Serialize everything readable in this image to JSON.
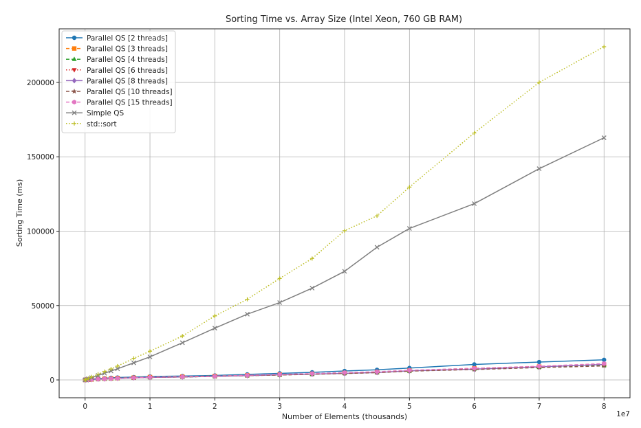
{
  "chart_data": {
    "type": "line",
    "title": "Sorting Time vs. Array Size (Intel Xeon, 760 GB RAM)",
    "xlabel": "Number of Elements (thousands)",
    "ylabel": "Sorting Time (ms)",
    "x_offset_text": "1e7",
    "xlim": [
      -0.4,
      8.4
    ],
    "ylim": [
      -12000,
      236000
    ],
    "x_ticks": [
      0,
      1,
      2,
      3,
      4,
      5,
      6,
      7,
      8
    ],
    "x_tick_labels": [
      "0",
      "1",
      "2",
      "3",
      "4",
      "5",
      "6",
      "7",
      "8"
    ],
    "y_ticks": [
      0,
      50000,
      100000,
      150000,
      200000
    ],
    "y_tick_labels": [
      "0",
      "50000",
      "100000",
      "150000",
      "200000"
    ],
    "grid": true,
    "legend_position": "top-left",
    "x": [
      0,
      0.01,
      0.05,
      0.1,
      0.2,
      0.3,
      0.4,
      0.5,
      0.75,
      1,
      1.5,
      2,
      2.5,
      3,
      3.5,
      4,
      4.5,
      5,
      6,
      7,
      8
    ],
    "series": [
      {
        "name": "Parallel QS [2 threads]",
        "color": "#1f77b4",
        "marker": "circle",
        "dash": "solid",
        "values": [
          0,
          80,
          200,
          500,
          900,
          1100,
          1400,
          1600,
          1900,
          2300,
          2600,
          3000,
          3700,
          4400,
          5100,
          6000,
          6800,
          8000,
          10400,
          12000,
          13500
        ]
      },
      {
        "name": "Parallel QS [3 threads]",
        "color": "#ff7f0e",
        "marker": "square",
        "dash": "dashed",
        "values": [
          0,
          60,
          150,
          300,
          600,
          800,
          1000,
          1200,
          1500,
          1900,
          2200,
          2600,
          3100,
          3600,
          4100,
          4700,
          5300,
          6300,
          7800,
          9000,
          10300
        ]
      },
      {
        "name": "Parallel QS [4 threads]",
        "color": "#2ca02c",
        "marker": "triangle-up",
        "dash": "dashed",
        "values": [
          0,
          60,
          150,
          300,
          550,
          750,
          950,
          1100,
          1400,
          1700,
          2000,
          2400,
          2900,
          3400,
          3900,
          4500,
          5100,
          6000,
          7400,
          8600,
          9800
        ]
      },
      {
        "name": "Parallel QS [6 threads]",
        "color": "#d62728",
        "marker": "triangle-down",
        "dash": "dotted",
        "values": [
          0,
          60,
          150,
          300,
          550,
          700,
          900,
          1100,
          1400,
          1700,
          2000,
          2400,
          2900,
          3400,
          3900,
          4500,
          5100,
          6000,
          7600,
          9000,
          10500
        ]
      },
      {
        "name": "Parallel QS [8 threads]",
        "color": "#9467bd",
        "marker": "diamond",
        "dash": "solid",
        "values": [
          0,
          60,
          150,
          300,
          550,
          700,
          900,
          1100,
          1400,
          1700,
          2000,
          2400,
          2900,
          3400,
          3900,
          4400,
          5000,
          6100,
          7200,
          8800,
          10400
        ]
      },
      {
        "name": "Parallel QS [10 threads]",
        "color": "#8c564b",
        "marker": "star",
        "dash": "dashed",
        "values": [
          0,
          60,
          150,
          300,
          550,
          700,
          900,
          1100,
          1400,
          1700,
          2000,
          2400,
          2900,
          3300,
          3800,
          4300,
          4900,
          5900,
          7000,
          8300,
          9400
        ]
      },
      {
        "name": "Parallel QS [15 threads]",
        "color": "#e377c2",
        "marker": "hexagon",
        "dash": "dashed",
        "values": [
          0,
          60,
          150,
          300,
          550,
          700,
          900,
          1100,
          1400,
          1800,
          2100,
          2500,
          3100,
          3700,
          4300,
          4900,
          5500,
          6500,
          7800,
          9200,
          11000
        ]
      },
      {
        "name": "Simple QS",
        "color": "#7f7f7f",
        "marker": "x",
        "dash": "solid",
        "values": [
          0,
          150,
          800,
          1500,
          3000,
          4500,
          6000,
          7500,
          11500,
          15500,
          25000,
          34800,
          44200,
          52000,
          61700,
          73000,
          89200,
          101800,
          118500,
          142000,
          162800
        ]
      },
      {
        "name": "std::sort",
        "color": "#bcbd22",
        "marker": "plus",
        "dash": "dotted",
        "values": [
          0,
          200,
          1000,
          2000,
          3800,
          5600,
          7400,
          9300,
          14500,
          19300,
          29500,
          43000,
          54200,
          68200,
          81600,
          100300,
          110300,
          129600,
          166000,
          200000,
          224000
        ]
      }
    ]
  }
}
